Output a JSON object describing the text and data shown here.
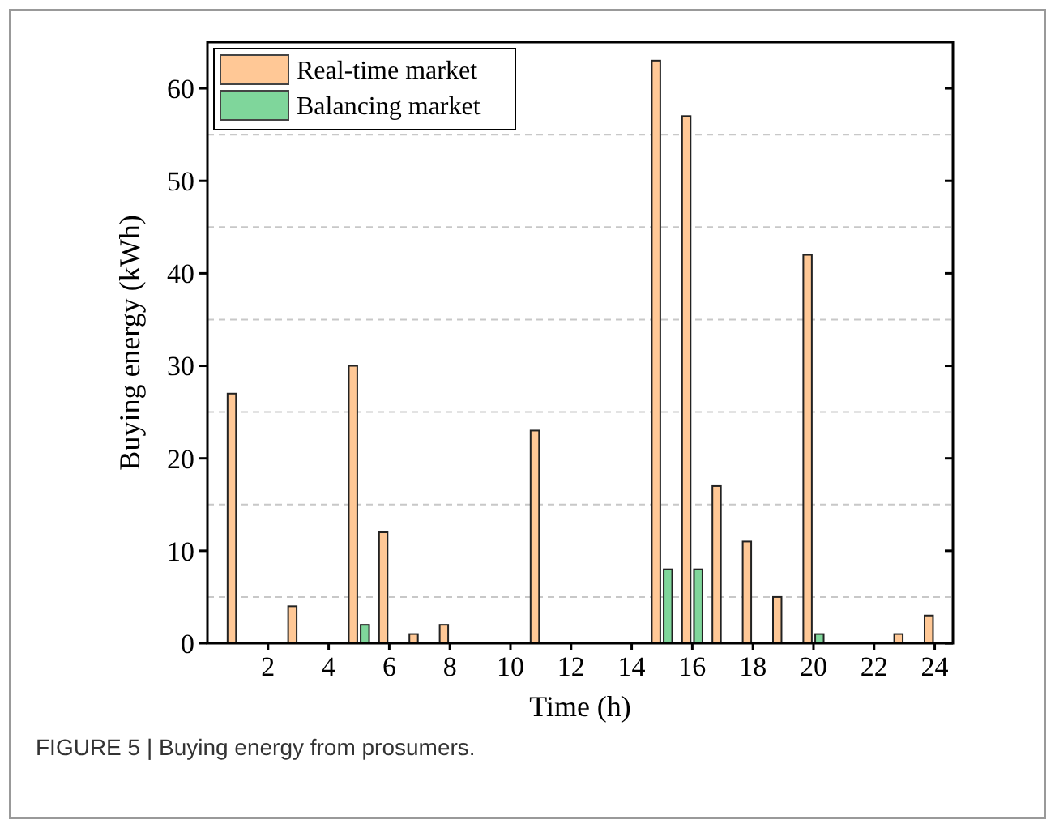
{
  "chart_data": {
    "type": "bar",
    "xlabel": "Time (h)",
    "ylabel": "Buying energy (kWh)",
    "x": [
      1,
      2,
      3,
      4,
      5,
      6,
      7,
      8,
      9,
      10,
      11,
      12,
      13,
      14,
      15,
      16,
      17,
      18,
      19,
      20,
      21,
      22,
      23,
      24
    ],
    "series": [
      {
        "name": "Real-time market",
        "color": "#ffc896",
        "values": [
          27,
          0,
          4,
          0,
          30,
          12,
          1,
          2,
          0,
          0,
          23,
          0,
          0,
          0,
          63,
          57,
          17,
          11,
          5,
          42,
          0,
          0,
          1,
          3
        ]
      },
      {
        "name": "Balancing market",
        "color": "#7fd69b",
        "values": [
          0,
          0,
          0,
          0,
          2,
          0,
          0,
          0,
          0,
          0,
          0,
          0,
          0,
          0,
          8,
          8,
          0,
          0,
          0,
          1,
          0,
          0,
          0,
          0
        ]
      }
    ],
    "xlim": [
      0,
      24.6
    ],
    "xticks": [
      2,
      4,
      6,
      8,
      10,
      12,
      14,
      16,
      18,
      20,
      22,
      24
    ],
    "ylim": [
      0,
      65
    ],
    "yticks": [
      0,
      {
        "value": 5,
        "label": null
      },
      10,
      {
        "value": 15,
        "label": null
      },
      20,
      {
        "value": 25,
        "label": null
      },
      30,
      {
        "value": 35,
        "label": null
      },
      40,
      {
        "value": 45,
        "label": null
      },
      50,
      {
        "value": 55,
        "label": null
      },
      60
    ],
    "grid": "y",
    "legend": "top left",
    "annotations": [
      "FIGURE 5 | Buying energy from prosumers."
    ]
  }
}
